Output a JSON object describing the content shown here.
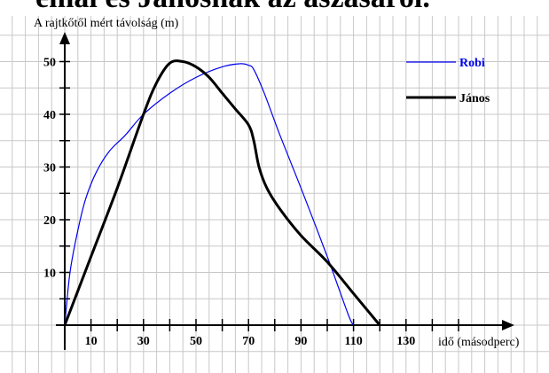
{
  "page": {
    "cut_heading": "emal és Jánosnak az ászásáról."
  },
  "chart_data": {
    "type": "line",
    "ylabel": "A rajtkőtől mért távolság (m)",
    "xlabel": "idő (másodperc)",
    "xlim": [
      0,
      165
    ],
    "ylim": [
      0,
      55
    ],
    "x_ticks": [
      10,
      30,
      50,
      70,
      90,
      110,
      130
    ],
    "y_ticks": [
      10,
      20,
      30,
      40,
      50
    ],
    "grid": true,
    "legend_position": "top-right",
    "series": [
      {
        "name": "Robi",
        "color": "#0000ee",
        "points": [
          [
            0,
            0
          ],
          [
            2,
            10
          ],
          [
            5,
            18
          ],
          [
            8,
            24
          ],
          [
            12,
            29
          ],
          [
            17,
            33
          ],
          [
            23,
            36
          ],
          [
            30,
            40
          ],
          [
            40,
            44
          ],
          [
            50,
            47
          ],
          [
            60,
            49
          ],
          [
            67,
            49.6
          ],
          [
            70,
            49.3
          ],
          [
            72,
            48.5
          ],
          [
            76,
            44
          ],
          [
            82,
            36
          ],
          [
            90,
            26
          ],
          [
            100,
            13
          ],
          [
            108,
            2
          ],
          [
            110,
            0
          ]
        ]
      },
      {
        "name": "János",
        "color": "#000000",
        "points": [
          [
            0,
            0
          ],
          [
            10,
            13
          ],
          [
            20,
            26
          ],
          [
            30,
            40
          ],
          [
            35,
            46
          ],
          [
            40,
            49.7
          ],
          [
            45,
            50
          ],
          [
            50,
            49
          ],
          [
            55,
            47
          ],
          [
            60,
            44
          ],
          [
            65,
            41
          ],
          [
            70,
            38
          ],
          [
            72,
            35
          ],
          [
            74,
            30
          ],
          [
            77,
            26
          ],
          [
            82,
            22
          ],
          [
            90,
            17
          ],
          [
            100,
            12
          ],
          [
            110,
            6
          ],
          [
            120,
            0
          ]
        ]
      }
    ]
  }
}
